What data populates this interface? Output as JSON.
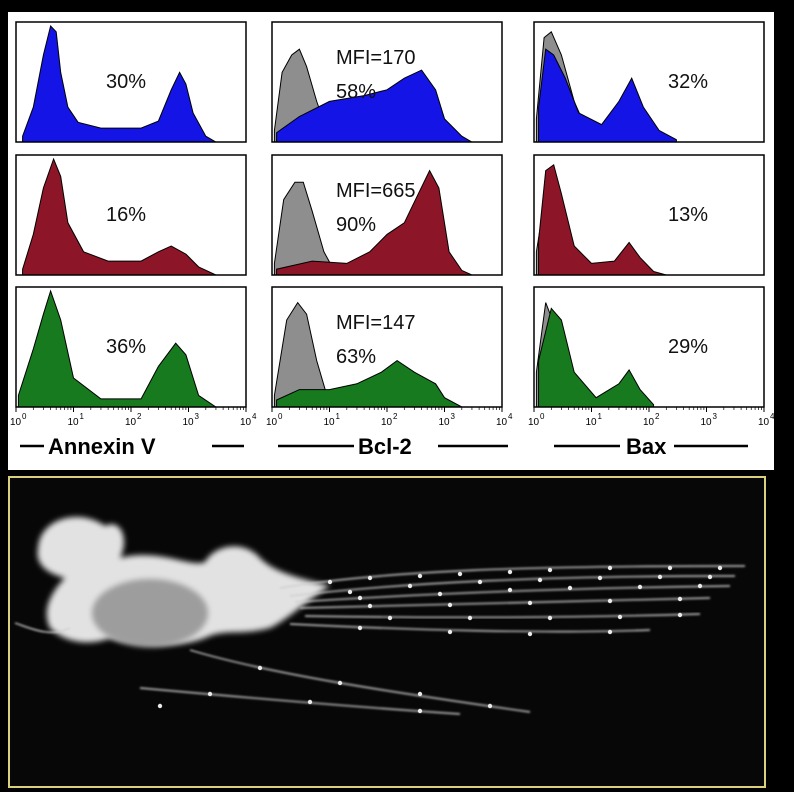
{
  "figure": {
    "captions": [
      "Annexin V",
      "Bcl-2",
      "Bax"
    ],
    "tick_labels": [
      "10",
      "10",
      "10",
      "10",
      "10"
    ],
    "tick_exponents": [
      "0",
      "1",
      "2",
      "3",
      "4"
    ]
  },
  "chart_data": [
    {
      "type": "area",
      "id": "annexin-row1",
      "xscale": "log",
      "xlim": [
        1,
        10000
      ],
      "color": "#1414e6",
      "annotations": [
        "30%"
      ],
      "series": [
        {
          "values": [
            [
              1.3,
              0.05
            ],
            [
              2,
              0.3
            ],
            [
              3,
              0.75
            ],
            [
              4,
              1.0
            ],
            [
              5,
              0.95
            ],
            [
              6,
              0.6
            ],
            [
              8,
              0.3
            ],
            [
              12,
              0.17
            ],
            [
              30,
              0.12
            ],
            [
              150,
              0.12
            ],
            [
              300,
              0.18
            ],
            [
              500,
              0.45
            ],
            [
              700,
              0.6
            ],
            [
              900,
              0.5
            ],
            [
              1200,
              0.25
            ],
            [
              2000,
              0.05
            ],
            [
              3000,
              0.0
            ]
          ]
        }
      ]
    },
    {
      "type": "area",
      "id": "bcl2-row1",
      "xscale": "log",
      "xlim": [
        1,
        10000
      ],
      "color": "#1414e6",
      "annotations": [
        "MFI=170",
        "58%"
      ],
      "series": [
        {
          "gray": true,
          "values": [
            [
              1.1,
              0.1
            ],
            [
              1.5,
              0.6
            ],
            [
              2.2,
              0.75
            ],
            [
              3,
              0.8
            ],
            [
              4,
              0.65
            ],
            [
              6,
              0.35
            ],
            [
              9,
              0.1
            ],
            [
              13,
              0.02
            ]
          ]
        },
        {
          "values": [
            [
              1.2,
              0.08
            ],
            [
              3,
              0.22
            ],
            [
              10,
              0.35
            ],
            [
              40,
              0.4
            ],
            [
              100,
              0.45
            ],
            [
              200,
              0.55
            ],
            [
              400,
              0.62
            ],
            [
              700,
              0.45
            ],
            [
              1000,
              0.2
            ],
            [
              2000,
              0.05
            ],
            [
              3000,
              0.0
            ]
          ]
        }
      ]
    },
    {
      "type": "area",
      "id": "bax-row1",
      "xscale": "log",
      "xlim": [
        1,
        10000
      ],
      "color": "#1414e6",
      "annotations": [
        "32%"
      ],
      "series": [
        {
          "gray": true,
          "values": [
            [
              1.1,
              0.2
            ],
            [
              1.5,
              0.9
            ],
            [
              2,
              0.95
            ],
            [
              3,
              0.75
            ],
            [
              5,
              0.35
            ],
            [
              8,
              0.12
            ],
            [
              12,
              0.03
            ],
            [
              20,
              0.0
            ]
          ]
        },
        {
          "values": [
            [
              1.2,
              0.3
            ],
            [
              1.6,
              0.8
            ],
            [
              2.2,
              0.75
            ],
            [
              3.5,
              0.55
            ],
            [
              6,
              0.25
            ],
            [
              15,
              0.15
            ],
            [
              30,
              0.35
            ],
            [
              50,
              0.55
            ],
            [
              80,
              0.3
            ],
            [
              150,
              0.1
            ],
            [
              300,
              0.02
            ]
          ]
        }
      ]
    },
    {
      "type": "area",
      "id": "annexin-row2",
      "xscale": "log",
      "xlim": [
        1,
        10000
      ],
      "color": "#8c1628",
      "annotations": [
        "16%"
      ],
      "series": [
        {
          "values": [
            [
              1.3,
              0.05
            ],
            [
              2,
              0.35
            ],
            [
              3,
              0.75
            ],
            [
              4.5,
              1.0
            ],
            [
              6,
              0.85
            ],
            [
              8,
              0.45
            ],
            [
              15,
              0.2
            ],
            [
              40,
              0.12
            ],
            [
              150,
              0.12
            ],
            [
              300,
              0.2
            ],
            [
              500,
              0.25
            ],
            [
              900,
              0.18
            ],
            [
              1500,
              0.07
            ],
            [
              3000,
              0.0
            ]
          ]
        }
      ]
    },
    {
      "type": "area",
      "id": "bcl2-row2",
      "xscale": "log",
      "xlim": [
        1,
        10000
      ],
      "color": "#8c1628",
      "annotations": [
        "MFI=665",
        "90%"
      ],
      "series": [
        {
          "gray": true,
          "values": [
            [
              1.1,
              0.1
            ],
            [
              1.6,
              0.65
            ],
            [
              2.5,
              0.8
            ],
            [
              3.5,
              0.8
            ],
            [
              5,
              0.55
            ],
            [
              8,
              0.2
            ],
            [
              12,
              0.04
            ]
          ]
        },
        {
          "values": [
            [
              1.2,
              0.05
            ],
            [
              5,
              0.12
            ],
            [
              20,
              0.1
            ],
            [
              50,
              0.2
            ],
            [
              100,
              0.35
            ],
            [
              200,
              0.45
            ],
            [
              350,
              0.7
            ],
            [
              550,
              0.9
            ],
            [
              800,
              0.75
            ],
            [
              1200,
              0.2
            ],
            [
              2000,
              0.04
            ],
            [
              3000,
              0.0
            ]
          ]
        }
      ]
    },
    {
      "type": "area",
      "id": "bax-row2",
      "xscale": "log",
      "xlim": [
        1,
        10000
      ],
      "color": "#8c1628",
      "annotations": [
        "13%"
      ],
      "series": [
        {
          "gray": true,
          "values": [
            [
              1.1,
              0.2
            ],
            [
              1.6,
              0.7
            ],
            [
              2.5,
              0.65
            ],
            [
              4,
              0.35
            ],
            [
              7,
              0.1
            ],
            [
              12,
              0.02
            ]
          ]
        },
        {
          "values": [
            [
              1.2,
              0.3
            ],
            [
              1.6,
              0.9
            ],
            [
              2.2,
              0.95
            ],
            [
              3,
              0.7
            ],
            [
              5,
              0.25
            ],
            [
              10,
              0.1
            ],
            [
              25,
              0.12
            ],
            [
              45,
              0.28
            ],
            [
              70,
              0.15
            ],
            [
              120,
              0.03
            ],
            [
              200,
              0.0
            ]
          ]
        }
      ]
    },
    {
      "type": "area",
      "id": "annexin-row3",
      "xscale": "log",
      "xlim": [
        1,
        10000
      ],
      "color": "#177a1f",
      "annotations": [
        "36%"
      ],
      "series": [
        {
          "values": [
            [
              1.1,
              0.1
            ],
            [
              2,
              0.5
            ],
            [
              3,
              0.8
            ],
            [
              4,
              1.0
            ],
            [
              6,
              0.75
            ],
            [
              10,
              0.25
            ],
            [
              30,
              0.07
            ],
            [
              150,
              0.07
            ],
            [
              300,
              0.35
            ],
            [
              600,
              0.55
            ],
            [
              900,
              0.45
            ],
            [
              1500,
              0.1
            ],
            [
              3000,
              0.0
            ]
          ]
        }
      ]
    },
    {
      "type": "area",
      "id": "bcl2-row3",
      "xscale": "log",
      "xlim": [
        1,
        10000
      ],
      "color": "#177a1f",
      "annotations": [
        "MFI=147",
        "63%"
      ],
      "series": [
        {
          "gray": true,
          "values": [
            [
              1.1,
              0.1
            ],
            [
              1.8,
              0.75
            ],
            [
              2.8,
              0.9
            ],
            [
              4,
              0.8
            ],
            [
              6,
              0.4
            ],
            [
              9,
              0.1
            ],
            [
              12,
              0.02
            ]
          ]
        },
        {
          "values": [
            [
              1.2,
              0.06
            ],
            [
              3,
              0.15
            ],
            [
              10,
              0.15
            ],
            [
              30,
              0.2
            ],
            [
              80,
              0.3
            ],
            [
              150,
              0.4
            ],
            [
              300,
              0.3
            ],
            [
              700,
              0.2
            ],
            [
              1000,
              0.08
            ],
            [
              2000,
              0.0
            ]
          ]
        }
      ]
    },
    {
      "type": "area",
      "id": "bax-row3",
      "xscale": "log",
      "xlim": [
        1,
        10000
      ],
      "color": "#177a1f",
      "annotations": [
        "29%"
      ],
      "series": [
        {
          "gray": true,
          "values": [
            [
              1.1,
              0.3
            ],
            [
              1.6,
              0.9
            ],
            [
              2.5,
              0.65
            ],
            [
              4,
              0.35
            ],
            [
              7,
              0.1
            ],
            [
              12,
              0.02
            ]
          ]
        },
        {
          "values": [
            [
              1.2,
              0.4
            ],
            [
              2,
              0.85
            ],
            [
              3,
              0.75
            ],
            [
              5,
              0.3
            ],
            [
              12,
              0.08
            ],
            [
              30,
              0.2
            ],
            [
              45,
              0.32
            ],
            [
              70,
              0.15
            ],
            [
              120,
              0.02
            ]
          ]
        }
      ]
    }
  ]
}
